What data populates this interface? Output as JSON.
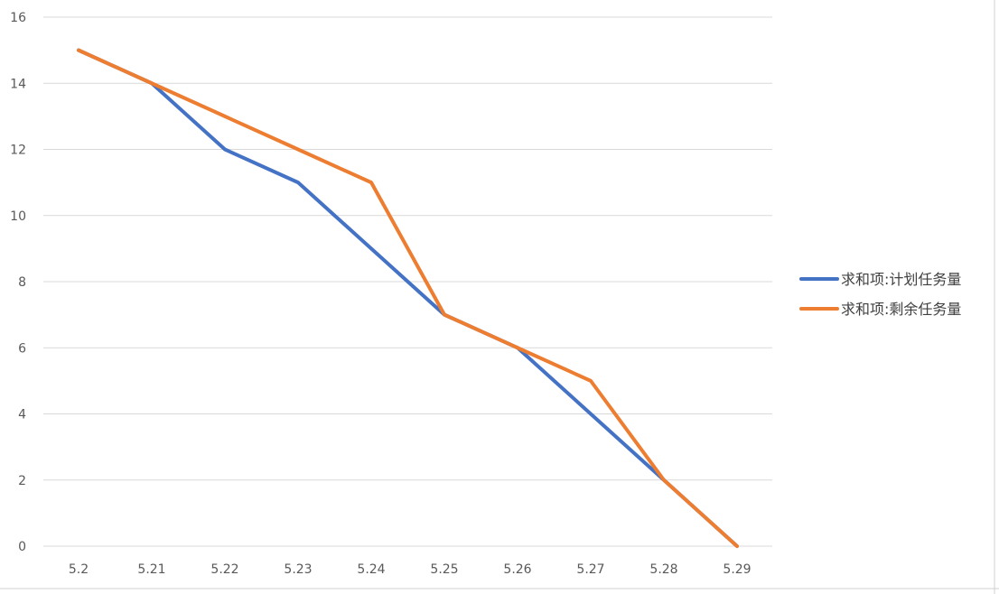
{
  "chart_data": {
    "type": "line",
    "title": "",
    "xlabel": "",
    "ylabel": "",
    "categories": [
      "5.2",
      "5.21",
      "5.22",
      "5.23",
      "5.24",
      "5.25",
      "5.26",
      "5.27",
      "5.28",
      "5.29"
    ],
    "ylim": [
      0,
      16
    ],
    "yticks": [
      0,
      2,
      4,
      6,
      8,
      10,
      12,
      14,
      16
    ],
    "grid": true,
    "legend_position": "right",
    "series": [
      {
        "name": "求和项:计划任务量",
        "color": "#4472C4",
        "values": [
          15,
          14,
          12,
          11,
          9,
          7,
          6,
          4,
          2,
          0
        ]
      },
      {
        "name": "求和项:剩余任务量",
        "color": "#ED7D31",
        "values": [
          15,
          14,
          13,
          12,
          11,
          7,
          6,
          5,
          2,
          0
        ]
      }
    ]
  }
}
